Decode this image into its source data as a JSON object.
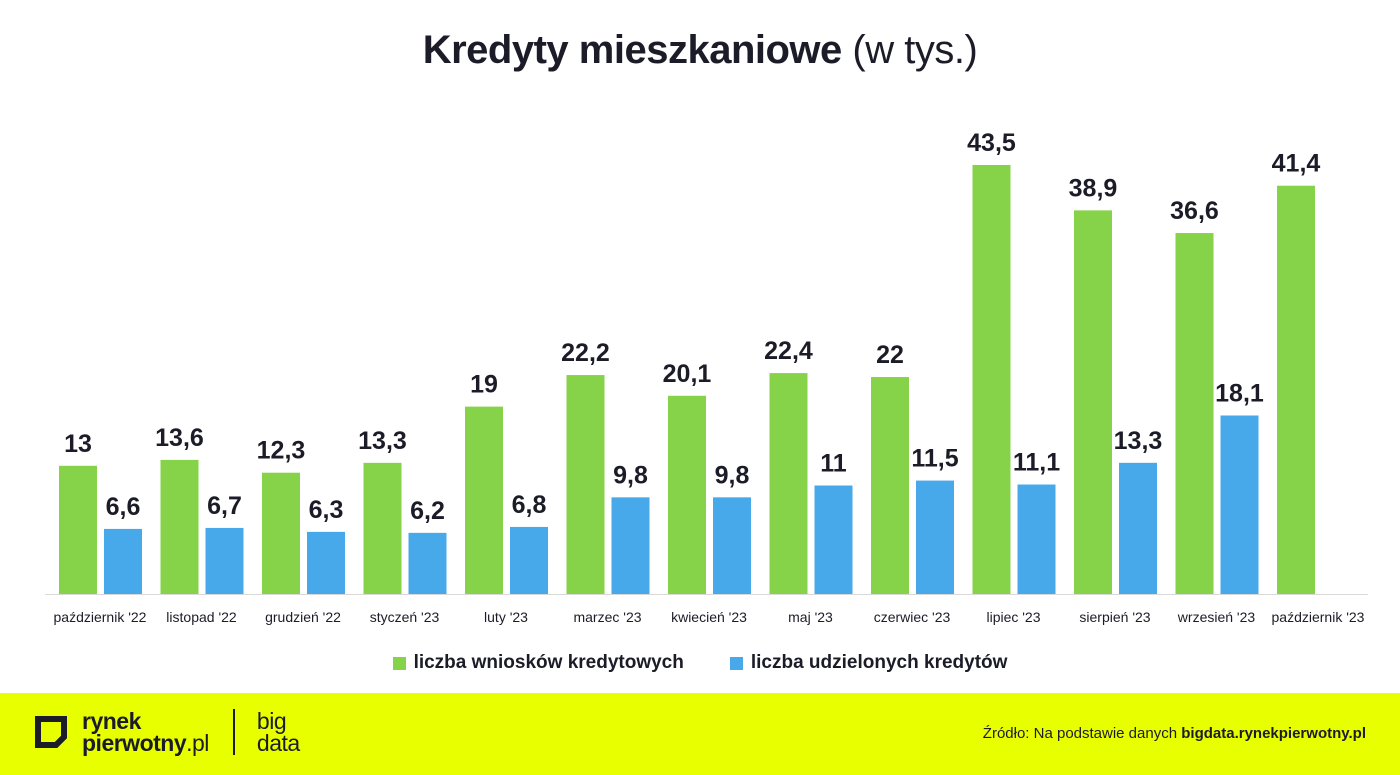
{
  "title": {
    "bold": "Kredyty mieszkaniowe",
    "light": "(w tys.)"
  },
  "chart_data": {
    "type": "bar",
    "title": "Kredyty mieszkaniowe (w tys.)",
    "categories": [
      "październik '22",
      "listopad '22",
      "grudzień '22",
      "styczeń '23",
      "luty '23",
      "marzec '23",
      "kwiecień '23",
      "maj '23",
      "czerwiec '23",
      "lipiec '23",
      "sierpień '23",
      "wrzesień '23",
      "październik '23"
    ],
    "series": [
      {
        "name": "liczba wniosków kredytowych",
        "color": "#86d34a",
        "values": [
          13,
          13.6,
          12.3,
          13.3,
          19,
          22.2,
          20.1,
          22.4,
          22,
          43.5,
          38.9,
          36.6,
          41.4
        ],
        "labels": [
          "13",
          "13,6",
          "12,3",
          "13,3",
          "19",
          "22,2",
          "20,1",
          "22,4",
          "22",
          "43,5",
          "38,9",
          "36,6",
          "41,4"
        ]
      },
      {
        "name": "liczba udzielonych kredytów",
        "color": "#47a8ea",
        "values": [
          6.6,
          6.7,
          6.3,
          6.2,
          6.8,
          9.8,
          9.8,
          11,
          11.5,
          11.1,
          13.3,
          18.1,
          null
        ],
        "labels": [
          "6,6",
          "6,7",
          "6,3",
          "6,2",
          "6,8",
          "9,8",
          "9,8",
          "11",
          "11,5",
          "11,1",
          "13,3",
          "18,1",
          ""
        ]
      }
    ],
    "ylim": [
      0,
      45
    ],
    "grid": false,
    "legend": "bottom"
  },
  "footer": {
    "logo_line1": "rynek",
    "logo_line2": "pierwotny",
    "logo_suffix": ".pl",
    "logo_big1": "big",
    "logo_big2": "data",
    "source_prefix": "Źródło: Na podstawie danych ",
    "source_link": "bigdata.rynekpierwotny.pl",
    "background_color": "#e8ff00"
  }
}
